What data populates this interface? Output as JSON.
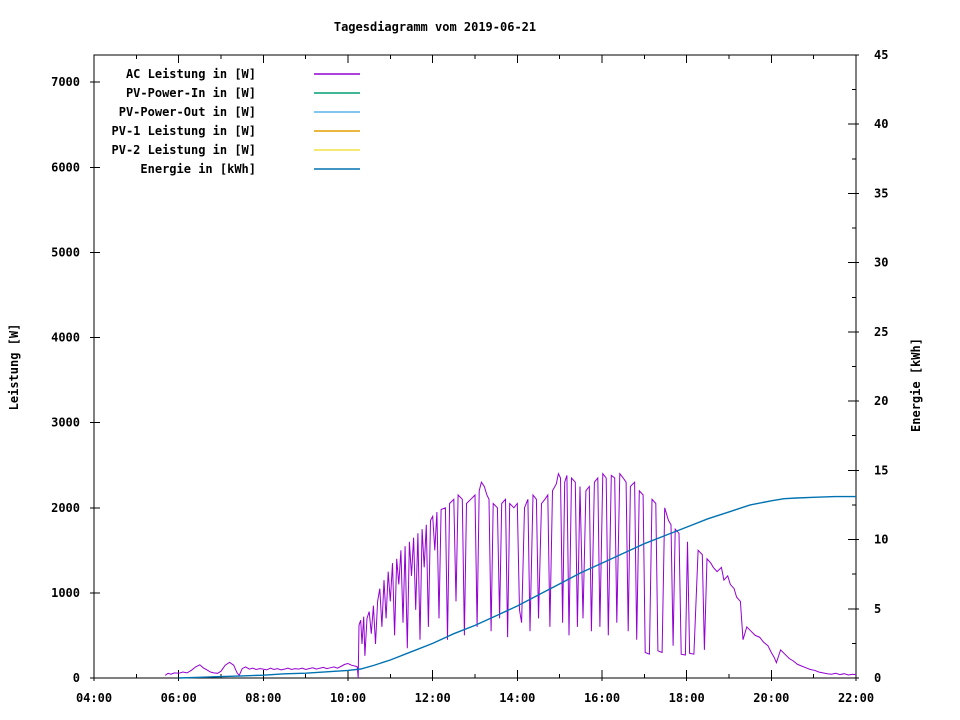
{
  "title": "Tagesdiagramm vom 2019-06-21",
  "axes": {
    "x": {
      "range": [
        4,
        22
      ],
      "minor_step": 1,
      "major_ticks": [
        {
          "v": 4,
          "label": "04:00"
        },
        {
          "v": 6,
          "label": "06:00"
        },
        {
          "v": 8,
          "label": "08:00"
        },
        {
          "v": 10,
          "label": "10:00"
        },
        {
          "v": 12,
          "label": "12:00"
        },
        {
          "v": 14,
          "label": "14:00"
        },
        {
          "v": 16,
          "label": "16:00"
        },
        {
          "v": 18,
          "label": "18:00"
        },
        {
          "v": 20,
          "label": "20:00"
        },
        {
          "v": 22,
          "label": "22:00"
        }
      ]
    },
    "left": {
      "label": "Leistung [W]",
      "range": [
        0,
        7320
      ],
      "major_ticks": [
        {
          "v": 0,
          "label": "0"
        },
        {
          "v": 1000,
          "label": "1000"
        },
        {
          "v": 2000,
          "label": "2000"
        },
        {
          "v": 3000,
          "label": "3000"
        },
        {
          "v": 4000,
          "label": "4000"
        },
        {
          "v": 5000,
          "label": "5000"
        },
        {
          "v": 6000,
          "label": "6000"
        },
        {
          "v": 7000,
          "label": "7000"
        }
      ]
    },
    "right": {
      "label": "Energie [kWh]",
      "range": [
        0,
        45
      ],
      "minor_step": 2.5,
      "major_ticks": [
        {
          "v": 0,
          "label": "0"
        },
        {
          "v": 5,
          "label": "5"
        },
        {
          "v": 10,
          "label": "10"
        },
        {
          "v": 15,
          "label": "15"
        },
        {
          "v": 20,
          "label": "20"
        },
        {
          "v": 25,
          "label": "25"
        },
        {
          "v": 30,
          "label": "30"
        },
        {
          "v": 35,
          "label": "35"
        },
        {
          "v": 40,
          "label": "40"
        },
        {
          "v": 45,
          "label": "45"
        }
      ]
    }
  },
  "legend": {
    "entries": [
      {
        "label": "AC Leistung in [W]",
        "color": "#9400d3"
      },
      {
        "label": "PV-Power-In in [W]",
        "color": "#009e73"
      },
      {
        "label": "PV-Power-Out in [W]",
        "color": "#56b4e9"
      },
      {
        "label": "PV-1 Leistung in [W]",
        "color": "#e69f00"
      },
      {
        "label": "PV-2 Leistung in [W]",
        "color": "#f0e442"
      },
      {
        "label": "Energie in [kWh]",
        "color": "#0072b2"
      }
    ]
  },
  "chart_data": {
    "type": "line",
    "title": "Tagesdiagramm vom 2019-06-21",
    "xlabel": "",
    "x_unit": "time of day (hours)",
    "x_range": [
      4,
      22
    ],
    "left_axis": {
      "label": "Leistung [W]",
      "ylim": [
        0,
        7320
      ]
    },
    "right_axis": {
      "label": "Energie [kWh]",
      "ylim": [
        0,
        45
      ]
    },
    "grid": false,
    "legend_position": "top-left",
    "series": [
      {
        "name": "AC Leistung in [W]",
        "axis": "left",
        "color": "#9400d3",
        "points": [
          [
            5.68,
            30
          ],
          [
            5.75,
            55
          ],
          [
            5.82,
            45
          ],
          [
            5.9,
            60
          ],
          [
            6.0,
            55
          ],
          [
            6.1,
            70
          ],
          [
            6.2,
            60
          ],
          [
            6.3,
            90
          ],
          [
            6.4,
            130
          ],
          [
            6.5,
            155
          ],
          [
            6.58,
            120
          ],
          [
            6.67,
            95
          ],
          [
            6.75,
            70
          ],
          [
            6.83,
            60
          ],
          [
            6.92,
            55
          ],
          [
            7.0,
            80
          ],
          [
            7.1,
            150
          ],
          [
            7.2,
            185
          ],
          [
            7.3,
            150
          ],
          [
            7.38,
            60
          ],
          [
            7.43,
            30
          ],
          [
            7.5,
            110
          ],
          [
            7.58,
            130
          ],
          [
            7.67,
            105
          ],
          [
            7.75,
            115
          ],
          [
            7.83,
            100
          ],
          [
            7.92,
            110
          ],
          [
            8.0,
            105
          ],
          [
            8.08,
            95
          ],
          [
            8.17,
            115
          ],
          [
            8.25,
            100
          ],
          [
            8.33,
            110
          ],
          [
            8.42,
            95
          ],
          [
            8.5,
            105
          ],
          [
            8.58,
            115
          ],
          [
            8.67,
            100
          ],
          [
            8.75,
            110
          ],
          [
            8.83,
            105
          ],
          [
            8.92,
            115
          ],
          [
            9.0,
            100
          ],
          [
            9.08,
            110
          ],
          [
            9.17,
            120
          ],
          [
            9.25,
            105
          ],
          [
            9.33,
            115
          ],
          [
            9.42,
            125
          ],
          [
            9.5,
            110
          ],
          [
            9.58,
            120
          ],
          [
            9.67,
            130
          ],
          [
            9.75,
            115
          ],
          [
            9.83,
            135
          ],
          [
            9.92,
            160
          ],
          [
            10.0,
            170
          ],
          [
            10.08,
            150
          ],
          [
            10.17,
            140
          ],
          [
            10.22,
            130
          ],
          [
            10.24,
            0
          ],
          [
            10.26,
            620
          ],
          [
            10.3,
            680
          ],
          [
            10.33,
            400
          ],
          [
            10.37,
            720
          ],
          [
            10.4,
            260
          ],
          [
            10.45,
            700
          ],
          [
            10.5,
            780
          ],
          [
            10.55,
            520
          ],
          [
            10.6,
            850
          ],
          [
            10.65,
            400
          ],
          [
            10.7,
            900
          ],
          [
            10.75,
            1050
          ],
          [
            10.8,
            600
          ],
          [
            10.85,
            1150
          ],
          [
            10.9,
            700
          ],
          [
            10.95,
            1250
          ],
          [
            11.0,
            900
          ],
          [
            11.05,
            1350
          ],
          [
            11.1,
            500
          ],
          [
            11.15,
            1400
          ],
          [
            11.2,
            1100
          ],
          [
            11.25,
            1500
          ],
          [
            11.3,
            650
          ],
          [
            11.35,
            1550
          ],
          [
            11.4,
            350
          ],
          [
            11.45,
            1600
          ],
          [
            11.5,
            1200
          ],
          [
            11.55,
            1650
          ],
          [
            11.6,
            800
          ],
          [
            11.65,
            1700
          ],
          [
            11.7,
            450
          ],
          [
            11.75,
            1750
          ],
          [
            11.8,
            1300
          ],
          [
            11.85,
            1800
          ],
          [
            11.9,
            600
          ],
          [
            11.95,
            1850
          ],
          [
            12.0,
            1900
          ],
          [
            12.05,
            1500
          ],
          [
            12.1,
            1950
          ],
          [
            12.15,
            700
          ],
          [
            12.2,
            1980
          ],
          [
            12.3,
            2000
          ],
          [
            12.35,
            450
          ],
          [
            12.4,
            2050
          ],
          [
            12.5,
            2100
          ],
          [
            12.55,
            900
          ],
          [
            12.6,
            2150
          ],
          [
            12.7,
            2100
          ],
          [
            12.75,
            500
          ],
          [
            12.8,
            2050
          ],
          [
            12.9,
            2100
          ],
          [
            13.0,
            2150
          ],
          [
            13.05,
            600
          ],
          [
            13.1,
            2200
          ],
          [
            13.15,
            2300
          ],
          [
            13.22,
            2250
          ],
          [
            13.28,
            2150
          ],
          [
            13.33,
            2100
          ],
          [
            13.38,
            550
          ],
          [
            13.43,
            2050
          ],
          [
            13.53,
            2000
          ],
          [
            13.58,
            700
          ],
          [
            13.63,
            2050
          ],
          [
            13.72,
            2100
          ],
          [
            13.77,
            480
          ],
          [
            13.82,
            2050
          ],
          [
            13.92,
            2000
          ],
          [
            14.0,
            2050
          ],
          [
            14.05,
            800
          ],
          [
            14.1,
            650
          ],
          [
            14.17,
            2000
          ],
          [
            14.25,
            2100
          ],
          [
            14.3,
            550
          ],
          [
            14.37,
            2150
          ],
          [
            14.45,
            2100
          ],
          [
            14.5,
            700
          ],
          [
            14.57,
            2050
          ],
          [
            14.65,
            2100
          ],
          [
            14.72,
            2150
          ],
          [
            14.77,
            600
          ],
          [
            14.83,
            2200
          ],
          [
            14.92,
            2280
          ],
          [
            14.97,
            2400
          ],
          [
            15.02,
            2350
          ],
          [
            15.07,
            650
          ],
          [
            15.12,
            2300
          ],
          [
            15.17,
            2380
          ],
          [
            15.22,
            500
          ],
          [
            15.28,
            2350
          ],
          [
            15.37,
            2300
          ],
          [
            15.42,
            600
          ],
          [
            15.48,
            2250
          ],
          [
            15.55,
            700
          ],
          [
            15.62,
            2200
          ],
          [
            15.7,
            2250
          ],
          [
            15.75,
            550
          ],
          [
            15.82,
            2300
          ],
          [
            15.9,
            2350
          ],
          [
            15.95,
            600
          ],
          [
            16.02,
            2400
          ],
          [
            16.1,
            2350
          ],
          [
            16.15,
            500
          ],
          [
            16.22,
            2380
          ],
          [
            16.3,
            2350
          ],
          [
            16.35,
            650
          ],
          [
            16.42,
            2400
          ],
          [
            16.5,
            2350
          ],
          [
            16.57,
            2300
          ],
          [
            16.62,
            550
          ],
          [
            16.67,
            2250
          ],
          [
            16.77,
            2300
          ],
          [
            16.82,
            450
          ],
          [
            16.88,
            2200
          ],
          [
            16.97,
            2150
          ],
          [
            17.02,
            300
          ],
          [
            17.12,
            280
          ],
          [
            17.18,
            2100
          ],
          [
            17.27,
            2050
          ],
          [
            17.32,
            320
          ],
          [
            17.42,
            300
          ],
          [
            17.48,
            2000
          ],
          [
            17.57,
            1850
          ],
          [
            17.63,
            1800
          ],
          [
            17.68,
            380
          ],
          [
            17.73,
            1750
          ],
          [
            17.82,
            1700
          ],
          [
            17.87,
            280
          ],
          [
            17.97,
            270
          ],
          [
            18.02,
            1600
          ],
          [
            18.07,
            290
          ],
          [
            18.17,
            280
          ],
          [
            18.27,
            1500
          ],
          [
            18.37,
            1450
          ],
          [
            18.42,
            330
          ],
          [
            18.48,
            1400
          ],
          [
            18.57,
            1350
          ],
          [
            18.63,
            1300
          ],
          [
            18.72,
            1250
          ],
          [
            18.82,
            1300
          ],
          [
            18.88,
            1150
          ],
          [
            18.97,
            1200
          ],
          [
            19.03,
            1100
          ],
          [
            19.12,
            1050
          ],
          [
            19.18,
            950
          ],
          [
            19.27,
            900
          ],
          [
            19.33,
            450
          ],
          [
            19.42,
            600
          ],
          [
            19.52,
            550
          ],
          [
            19.62,
            500
          ],
          [
            19.72,
            480
          ],
          [
            19.82,
            420
          ],
          [
            19.92,
            380
          ],
          [
            20.0,
            300
          ],
          [
            20.07,
            240
          ],
          [
            20.12,
            180
          ],
          [
            20.22,
            330
          ],
          [
            20.32,
            280
          ],
          [
            20.42,
            230
          ],
          [
            20.52,
            200
          ],
          [
            20.62,
            160
          ],
          [
            20.72,
            140
          ],
          [
            20.82,
            120
          ],
          [
            20.92,
            100
          ],
          [
            21.02,
            90
          ],
          [
            21.12,
            70
          ],
          [
            21.22,
            60
          ],
          [
            21.32,
            50
          ],
          [
            21.42,
            45
          ],
          [
            21.52,
            55
          ],
          [
            21.62,
            40
          ],
          [
            21.72,
            50
          ],
          [
            21.82,
            35
          ],
          [
            21.92,
            45
          ],
          [
            22.0,
            40
          ]
        ]
      },
      {
        "name": "PV-Power-In in [W]",
        "axis": "left",
        "color": "#009e73",
        "points": []
      },
      {
        "name": "PV-Power-Out in [W]",
        "axis": "left",
        "color": "#56b4e9",
        "points": []
      },
      {
        "name": "PV-1 Leistung in [W]",
        "axis": "left",
        "color": "#e69f00",
        "points": []
      },
      {
        "name": "PV-2 Leistung in [W]",
        "axis": "left",
        "color": "#f0e442",
        "points": []
      },
      {
        "name": "Energie in [kWh]",
        "axis": "right",
        "color": "#0072b2",
        "points": [
          [
            6.0,
            0
          ],
          [
            6.5,
            0.05
          ],
          [
            7.0,
            0.1
          ],
          [
            7.5,
            0.15
          ],
          [
            8.0,
            0.2
          ],
          [
            8.5,
            0.3
          ],
          [
            9.0,
            0.35
          ],
          [
            9.5,
            0.45
          ],
          [
            10.0,
            0.55
          ],
          [
            10.3,
            0.65
          ],
          [
            10.6,
            0.9
          ],
          [
            11.0,
            1.3
          ],
          [
            11.5,
            1.9
          ],
          [
            12.0,
            2.5
          ],
          [
            12.5,
            3.2
          ],
          [
            13.0,
            3.8
          ],
          [
            13.5,
            4.5
          ],
          [
            14.0,
            5.2
          ],
          [
            14.5,
            6.0
          ],
          [
            15.0,
            6.8
          ],
          [
            15.5,
            7.6
          ],
          [
            16.0,
            8.3
          ],
          [
            16.5,
            9.0
          ],
          [
            17.0,
            9.7
          ],
          [
            17.5,
            10.3
          ],
          [
            18.0,
            10.9
          ],
          [
            18.5,
            11.5
          ],
          [
            19.0,
            12.0
          ],
          [
            19.5,
            12.5
          ],
          [
            20.0,
            12.8
          ],
          [
            20.3,
            12.95
          ],
          [
            20.6,
            13.0
          ],
          [
            21.0,
            13.05
          ],
          [
            21.5,
            13.1
          ],
          [
            22.0,
            13.1
          ]
        ]
      }
    ]
  }
}
